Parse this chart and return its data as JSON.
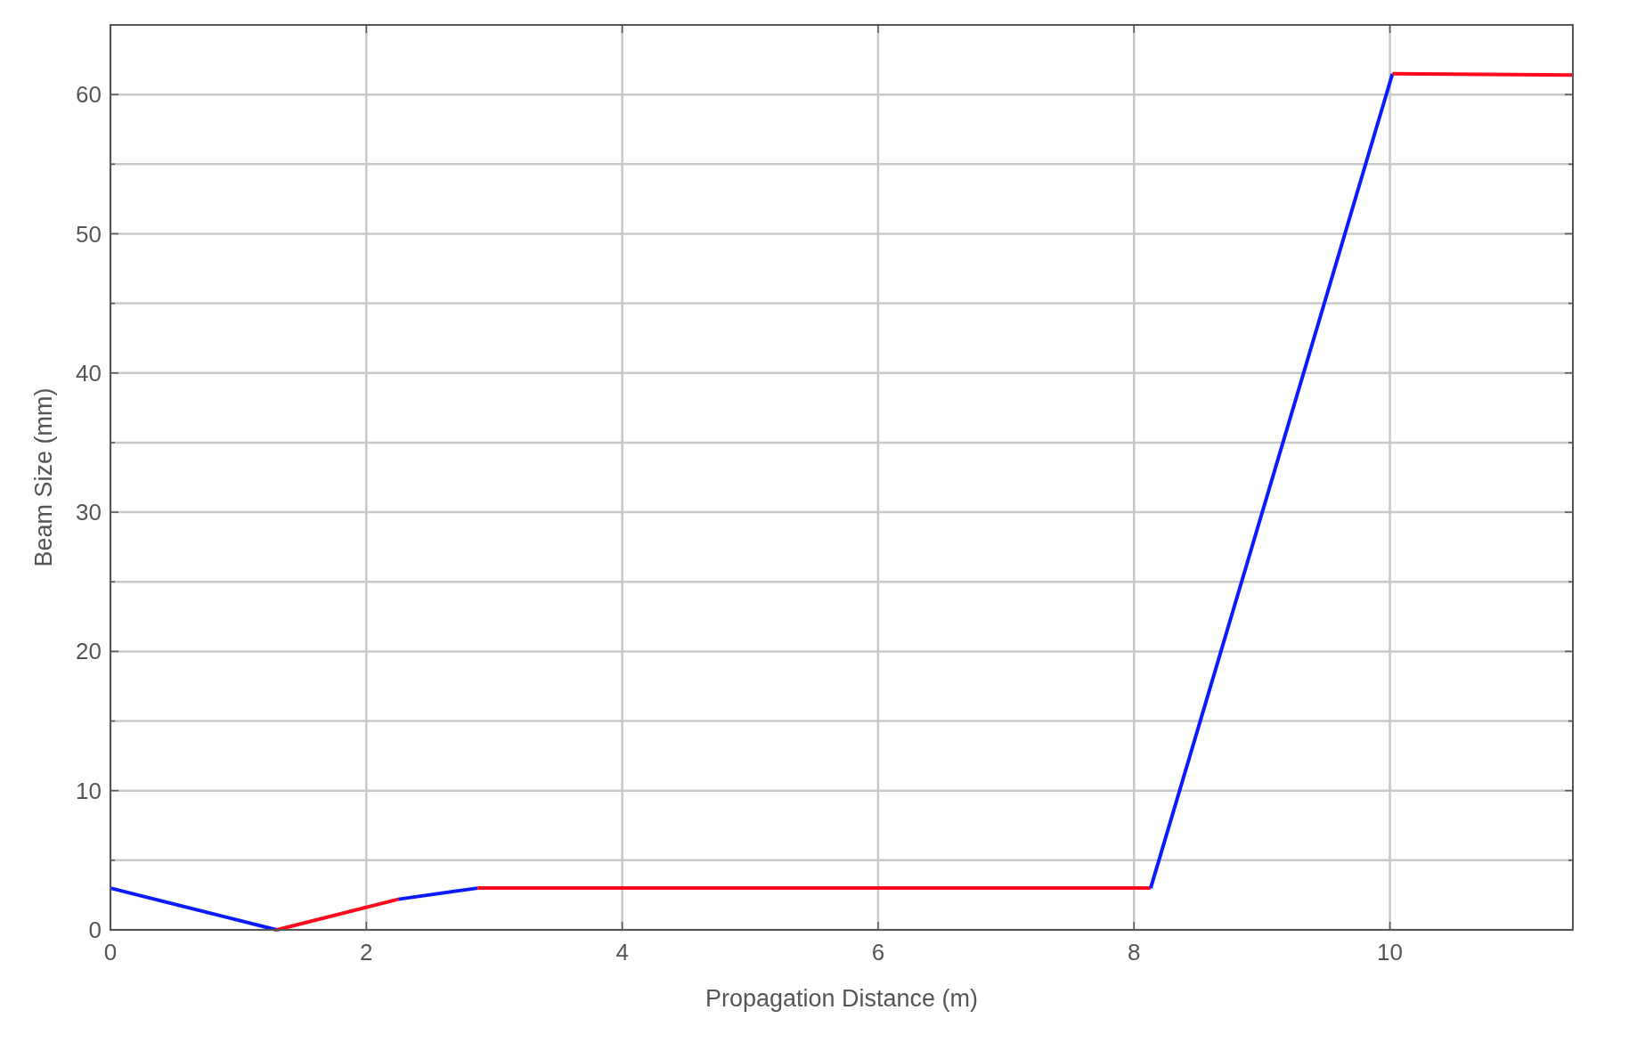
{
  "chart_data": {
    "type": "line",
    "xlabel": "Propagation Distance (m)",
    "ylabel": "Beam Size (mm)",
    "xlim": [
      0,
      11.43
    ],
    "ylim": [
      0,
      65
    ],
    "xticks": [
      0,
      2,
      4,
      6,
      8,
      10
    ],
    "yticks": [
      0,
      {
        "value": 5,
        "label": null
      },
      10,
      {
        "value": 15,
        "label": null
      },
      20,
      {
        "value": 25,
        "label": null
      },
      30,
      {
        "value": 35,
        "label": null
      },
      40,
      {
        "value": 45,
        "label": null
      },
      50,
      {
        "value": 55,
        "label": null
      },
      60
    ],
    "grid": true,
    "line_style": "solid",
    "marker": "none",
    "series": [
      {
        "color": "#0a1bff",
        "x": [
          0,
          1.3
        ],
        "values": [
          3,
          0
        ]
      },
      {
        "color": "#ff0a1b",
        "x": [
          1.3,
          2.25
        ],
        "values": [
          0,
          2.2
        ]
      },
      {
        "color": "#0a1bff",
        "x": [
          2.25,
          2.87
        ],
        "values": [
          2.2,
          3
        ]
      },
      {
        "color": "#ff0a1b",
        "x": [
          2.87,
          8.13
        ],
        "values": [
          3,
          3
        ]
      },
      {
        "color": "#0a1bff",
        "x": [
          8.13,
          10.02
        ],
        "values": [
          3,
          61.5
        ]
      },
      {
        "color": "#ff0a1b",
        "x": [
          10.02,
          11.43
        ],
        "values": [
          61.5,
          61.4
        ]
      }
    ]
  }
}
